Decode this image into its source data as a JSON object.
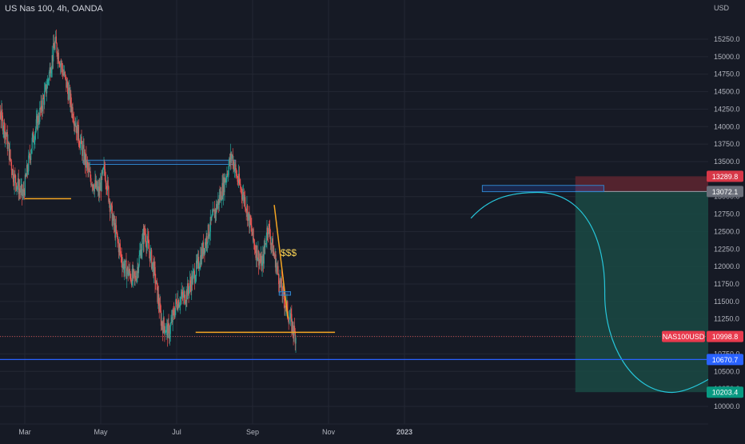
{
  "header": {
    "symbol_title": "US Nas 100, 4h, OANDA"
  },
  "axes": {
    "currency": "USD",
    "y_ticks": [
      15250.0,
      15000.0,
      14750.0,
      14500.0,
      14250.0,
      14000.0,
      13750.0,
      13500.0,
      13250.0,
      13000.0,
      12750.0,
      12500.0,
      12250.0,
      12000.0,
      11750.0,
      11500.0,
      11250.0,
      11000.0,
      10750.0,
      10500.0,
      10250.0,
      10000.0
    ],
    "x_ticks": [
      "Mar",
      "May",
      "Jul",
      "Sep",
      "Nov",
      "2023"
    ],
    "x_tick_positions": [
      1.0,
      3.0,
      5.0,
      7.0,
      9.0,
      11.0
    ]
  },
  "price_badges": {
    "stop": {
      "value": "13289.8",
      "color": "#d73747"
    },
    "entry": {
      "value": "13072.1",
      "color": "#6b6f7a"
    },
    "current_label": "NAS100USD",
    "current": {
      "value": "10998.8",
      "color": "#e83a4d"
    },
    "support": {
      "value": "10670.7",
      "color": "#2962ff"
    },
    "target": {
      "value": "10203.4",
      "color": "#089981"
    }
  },
  "annotations": {
    "dollar_text": "$$$"
  },
  "colors": {
    "background": "#161a25",
    "grid": "#232733",
    "axis_text": "#b2b5be",
    "candle_up": "#26a69a",
    "candle_down": "#ef5350",
    "level_line": "#f5a623",
    "blue_box": "#2f83c9",
    "blue_line": "#2962ff",
    "projection": "#26c6da",
    "profit_zone": "#1a4a44",
    "loss_zone": "#5a2530"
  },
  "chart_data": {
    "type": "candlestick",
    "title": "US Nas 100, 4h, OANDA",
    "ylabel": "USD",
    "ylim": [
      9900,
      15500
    ],
    "price_path": [
      {
        "t": 0.0,
        "p": 14950
      },
      {
        "t": 0.25,
        "p": 14400
      },
      {
        "t": 0.5,
        "p": 13900
      },
      {
        "t": 0.7,
        "p": 13300
      },
      {
        "t": 0.95,
        "p": 13000
      },
      {
        "t": 1.2,
        "p": 13800
      },
      {
        "t": 1.55,
        "p": 14500
      },
      {
        "t": 1.8,
        "p": 15200
      },
      {
        "t": 2.1,
        "p": 14600
      },
      {
        "t": 2.4,
        "p": 13900
      },
      {
        "t": 2.7,
        "p": 13300
      },
      {
        "t": 2.95,
        "p": 13050
      },
      {
        "t": 3.1,
        "p": 13400
      },
      {
        "t": 3.3,
        "p": 12700
      },
      {
        "t": 3.6,
        "p": 12000
      },
      {
        "t": 3.9,
        "p": 11800
      },
      {
        "t": 4.15,
        "p": 12500
      },
      {
        "t": 4.4,
        "p": 11950
      },
      {
        "t": 4.6,
        "p": 11200
      },
      {
        "t": 4.8,
        "p": 11050
      },
      {
        "t": 5.0,
        "p": 11500
      },
      {
        "t": 5.25,
        "p": 11600
      },
      {
        "t": 5.55,
        "p": 12000
      },
      {
        "t": 5.9,
        "p": 12600
      },
      {
        "t": 6.2,
        "p": 13100
      },
      {
        "t": 6.45,
        "p": 13600
      },
      {
        "t": 6.6,
        "p": 13250
      },
      {
        "t": 6.8,
        "p": 12950
      },
      {
        "t": 7.05,
        "p": 12300
      },
      {
        "t": 7.25,
        "p": 12000
      },
      {
        "t": 7.4,
        "p": 12600
      },
      {
        "t": 7.55,
        "p": 12200
      },
      {
        "t": 7.75,
        "p": 11700
      },
      {
        "t": 7.95,
        "p": 11300
      },
      {
        "t": 8.1,
        "p": 11050
      },
      {
        "t": 8.15,
        "p": 11000
      }
    ],
    "drawings": {
      "support_line_low": {
        "t": [
          5.5,
          9.17
        ],
        "price": 11060
      },
      "support_line_mar": {
        "t": [
          1.0,
          2.22
        ],
        "price": 12970
      },
      "range_box": {
        "t": [
          2.55,
          6.55
        ],
        "price": [
          13460,
          13520
        ]
      },
      "triangle_top": {
        "t": 7.57,
        "price": 12880
      },
      "triangle_bottom": {
        "t": 7.93,
        "price": 11260
      },
      "small_box": {
        "t": [
          7.7,
          8.0
        ],
        "price": [
          11590,
          11640
        ]
      },
      "horizontal_blue": {
        "price": 10670.7
      },
      "projection_box": {
        "t": [
          13.05,
          16.25
        ],
        "price": [
          13070,
          13160
        ]
      },
      "position": {
        "t": [
          15.5,
          19.6
        ],
        "entry": 13072.1,
        "stop": 13289.8,
        "target": 10203.4
      },
      "projection_curve": {
        "t": [
          12.75,
          19.8
        ],
        "top": 13060,
        "bottom": 10200,
        "start": 12690,
        "end": 10700
      }
    }
  }
}
